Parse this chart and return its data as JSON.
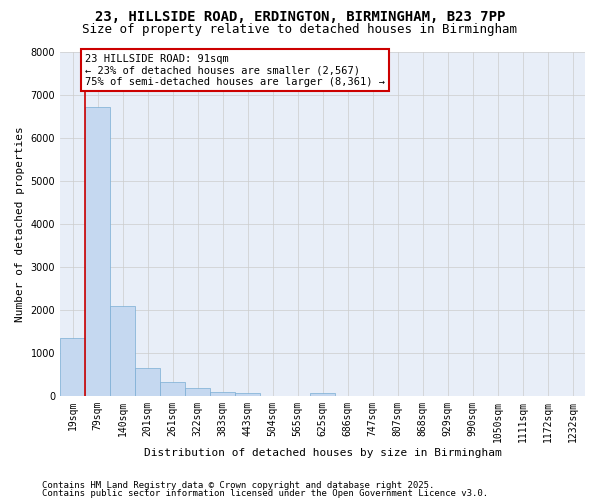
{
  "title1": "23, HILLSIDE ROAD, ERDINGTON, BIRMINGHAM, B23 7PP",
  "title2": "Size of property relative to detached houses in Birmingham",
  "xlabel": "Distribution of detached houses by size in Birmingham",
  "ylabel": "Number of detached properties",
  "categories": [
    "19sqm",
    "79sqm",
    "140sqm",
    "201sqm",
    "261sqm",
    "322sqm",
    "383sqm",
    "443sqm",
    "504sqm",
    "565sqm",
    "625sqm",
    "686sqm",
    "747sqm",
    "807sqm",
    "868sqm",
    "929sqm",
    "990sqm",
    "1050sqm",
    "1111sqm",
    "1172sqm",
    "1232sqm"
  ],
  "values": [
    1350,
    6700,
    2100,
    650,
    325,
    175,
    100,
    75,
    0,
    0,
    75,
    0,
    0,
    0,
    0,
    0,
    0,
    0,
    0,
    0,
    0
  ],
  "bar_color": "#c5d8f0",
  "bar_edgecolor": "#7aadd4",
  "grid_color": "#cccccc",
  "plot_bg_color": "#e8eef8",
  "fig_bg_color": "#ffffff",
  "annotation_box_color": "#ffffff",
  "annotation_border_color": "#cc0000",
  "vline_color": "#cc0000",
  "vline_x_index": 1,
  "annotation_title": "23 HILLSIDE ROAD: 91sqm",
  "annotation_line2": "← 23% of detached houses are smaller (2,567)",
  "annotation_line3": "75% of semi-detached houses are larger (8,361) →",
  "footnote1": "Contains HM Land Registry data © Crown copyright and database right 2025.",
  "footnote2": "Contains public sector information licensed under the Open Government Licence v3.0.",
  "ylim": [
    0,
    8000
  ],
  "yticks": [
    0,
    1000,
    2000,
    3000,
    4000,
    5000,
    6000,
    7000,
    8000
  ],
  "title1_fontsize": 10,
  "title2_fontsize": 9,
  "xlabel_fontsize": 8,
  "ylabel_fontsize": 8,
  "tick_fontsize": 7,
  "annotation_fontsize": 7.5,
  "footnote_fontsize": 6.5
}
